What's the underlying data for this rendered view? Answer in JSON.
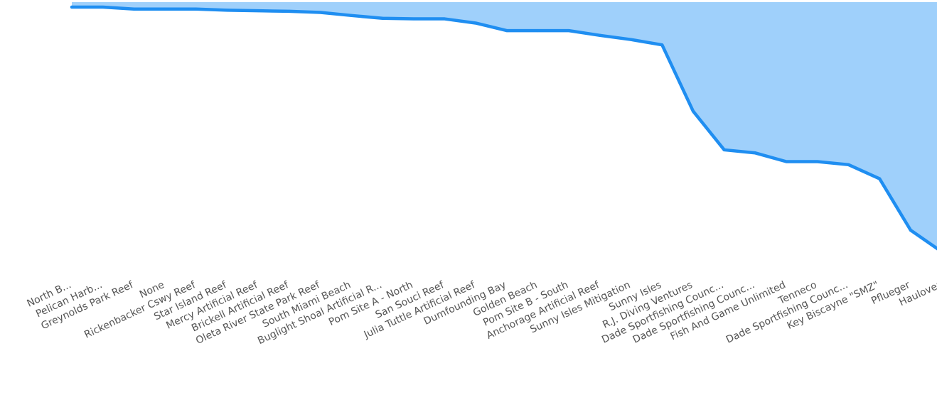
{
  "chart_data": {
    "type": "area",
    "title": "",
    "xlabel": "",
    "ylabel": "",
    "ylim": [
      0,
      100
    ],
    "categories": [
      "North B...",
      "Pelican Harb...",
      "Greynolds Park Reef",
      "None",
      "Rickenbacker Cswy Reef",
      "Star Island Reef",
      "Mercy Artificial Reef",
      "Brickell Artificial Reef",
      "Oleta River State Park Reef",
      "South Miami Beach",
      "Buglight Shoal Artificial R...",
      "Pom Site A - North",
      "San Souci Reef",
      "Julia Tuttle Artificial Reef",
      "Dumfounding Bay",
      "Golden Beach",
      "Pom Site B - South",
      "Anchorage Artificial Reef",
      "Sunny Isles Mitigation",
      "Sunny Isles",
      "R.J. Diving Ventures",
      "Dade Sportfishing Counc...",
      "Dade Sportfishing Counc...",
      "Fish And Game Unlimited",
      "Tenneco",
      "Dade Sportfishing Counc...",
      "Key Biscayne \"SMZ\"",
      "Pflueger",
      "Haulover"
    ],
    "series": [
      {
        "values": [
          100,
          100,
          99.3,
          99.3,
          99.3,
          98.9,
          98.7,
          98.5,
          98.1,
          97.0,
          96.0,
          95.8,
          95.8,
          94.3,
          91.6,
          91.6,
          91.6,
          89.9,
          88.4,
          86.5,
          62.8,
          49.0,
          47.9,
          44.8,
          44.8,
          43.7,
          38.7,
          20.3,
          12.6
        ],
        "color": "#1f8ef1",
        "fill": "#9fd0fb"
      }
    ],
    "grid": false,
    "legend": "none"
  }
}
